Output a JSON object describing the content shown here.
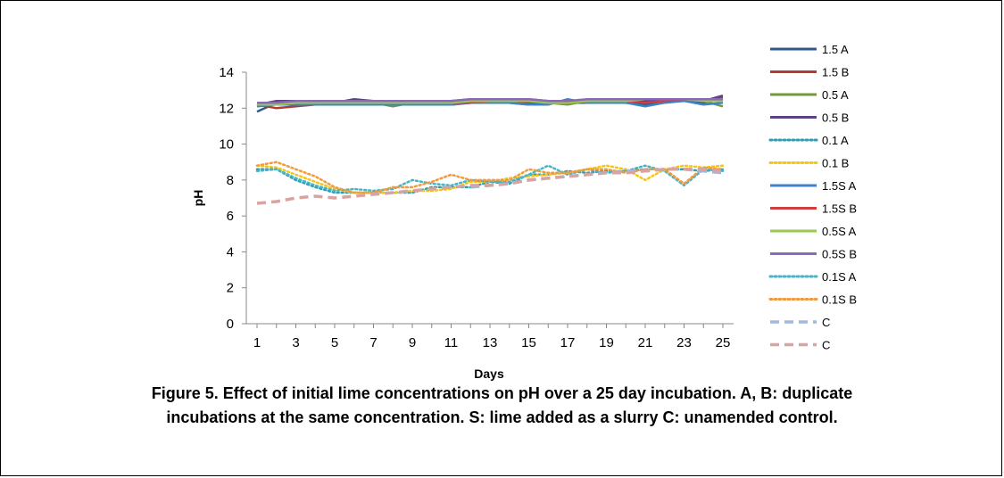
{
  "caption": {
    "line1": "Figure 5. Effect of initial lime concentrations on pH over a 25 day incubation. A, B: duplicate",
    "line2": "incubations at the same concentration. S: lime added as a slurry C: unamended control."
  },
  "chart_data": {
    "type": "line",
    "title": "",
    "xlabel": "Days",
    "ylabel": "pH",
    "ylim": [
      0,
      14
    ],
    "yticks": [
      0,
      2,
      4,
      6,
      8,
      10,
      12,
      14
    ],
    "xlim": [
      1,
      25
    ],
    "xticks": [
      1,
      3,
      5,
      7,
      9,
      11,
      13,
      15,
      17,
      19,
      21,
      23,
      25
    ],
    "grid": false,
    "legend_position": "right",
    "x": [
      1,
      2,
      3,
      4,
      5,
      6,
      7,
      8,
      9,
      10,
      11,
      12,
      13,
      14,
      15,
      16,
      17,
      18,
      19,
      20,
      21,
      22,
      23,
      24,
      25
    ],
    "series": [
      {
        "name": "1.5 A",
        "color": "#2f5b8c",
        "style": "solid",
        "values": [
          11.8,
          12.3,
          12.2,
          12.2,
          12.2,
          12.2,
          12.2,
          12.2,
          12.2,
          12.3,
          12.2,
          12.3,
          12.4,
          12.3,
          12.2,
          12.3,
          12.3,
          12.3,
          12.4,
          12.3,
          12.2,
          12.4,
          12.5,
          12.3,
          12.5
        ]
      },
      {
        "name": "1.5 B",
        "color": "#b23b35",
        "style": "solid",
        "values": [
          12.2,
          12.0,
          12.1,
          12.2,
          12.3,
          12.3,
          12.3,
          12.3,
          12.3,
          12.2,
          12.3,
          12.3,
          12.4,
          12.4,
          12.3,
          12.3,
          12.4,
          12.3,
          12.4,
          12.4,
          12.3,
          12.5,
          12.5,
          12.4,
          12.6
        ]
      },
      {
        "name": "0.5 A",
        "color": "#76973a",
        "style": "solid",
        "values": [
          12.1,
          12.3,
          12.3,
          12.4,
          12.3,
          12.3,
          12.3,
          12.1,
          12.3,
          12.4,
          12.3,
          12.4,
          12.4,
          12.4,
          12.4,
          12.3,
          12.2,
          12.4,
          12.4,
          12.3,
          12.4,
          12.5,
          12.5,
          12.4,
          12.1
        ]
      },
      {
        "name": "0.5 B",
        "color": "#5c4484",
        "style": "solid",
        "values": [
          12.2,
          12.4,
          12.4,
          12.4,
          12.3,
          12.5,
          12.4,
          12.4,
          12.4,
          12.4,
          12.4,
          12.5,
          12.5,
          12.5,
          12.5,
          12.4,
          12.4,
          12.4,
          12.5,
          12.5,
          12.4,
          12.5,
          12.5,
          12.4,
          12.7
        ]
      },
      {
        "name": "0.1 A",
        "color": "#2e9fb0",
        "style": "dotted",
        "values": [
          8.6,
          8.6,
          8.0,
          7.6,
          7.3,
          7.3,
          7.3,
          7.3,
          7.3,
          7.6,
          7.6,
          7.6,
          7.9,
          7.8,
          8.3,
          8.3,
          8.5,
          8.4,
          8.5,
          8.5,
          8.6,
          8.6,
          8.6,
          8.5,
          8.6
        ]
      },
      {
        "name": "0.1 B",
        "color": "#f5c518",
        "style": "dotted",
        "values": [
          8.8,
          8.7,
          8.3,
          7.9,
          7.5,
          7.3,
          7.3,
          7.3,
          7.4,
          7.4,
          7.5,
          7.9,
          7.9,
          8.1,
          8.2,
          8.3,
          8.4,
          8.6,
          8.8,
          8.6,
          8.0,
          8.6,
          8.8,
          8.7,
          8.8
        ]
      },
      {
        "name": "1.5S A",
        "color": "#3c83c9",
        "style": "solid",
        "values": [
          12.1,
          12.2,
          12.2,
          12.2,
          12.2,
          12.2,
          12.2,
          12.2,
          12.2,
          12.2,
          12.2,
          12.3,
          12.3,
          12.3,
          12.2,
          12.2,
          12.5,
          12.3,
          12.3,
          12.3,
          12.1,
          12.3,
          12.4,
          12.2,
          12.3
        ]
      },
      {
        "name": "1.5S B",
        "color": "#cf3f3f",
        "style": "solid",
        "values": [
          12.3,
          12.3,
          12.3,
          12.3,
          12.3,
          12.3,
          12.3,
          12.3,
          12.3,
          12.3,
          12.3,
          12.3,
          12.4,
          12.4,
          12.4,
          12.3,
          12.3,
          12.4,
          12.4,
          12.4,
          12.3,
          12.4,
          12.5,
          12.4,
          12.4
        ]
      },
      {
        "name": "0.5S A",
        "color": "#9ac94f",
        "style": "solid",
        "values": [
          12.2,
          12.2,
          12.3,
          12.3,
          12.3,
          12.3,
          12.3,
          12.3,
          12.3,
          12.3,
          12.3,
          12.4,
          12.4,
          12.4,
          12.4,
          12.3,
          12.3,
          12.4,
          12.4,
          12.4,
          12.5,
          12.5,
          12.5,
          12.4,
          12.4
        ]
      },
      {
        "name": "0.5S B",
        "color": "#8b68b8",
        "style": "solid",
        "values": [
          12.3,
          12.3,
          12.4,
          12.4,
          12.4,
          12.4,
          12.4,
          12.4,
          12.4,
          12.4,
          12.4,
          12.5,
          12.5,
          12.5,
          12.5,
          12.4,
          12.4,
          12.5,
          12.5,
          12.5,
          12.5,
          12.5,
          12.5,
          12.5,
          12.5
        ]
      },
      {
        "name": "0.1S A",
        "color": "#45b5c7",
        "style": "dotted",
        "values": [
          8.5,
          8.6,
          8.1,
          7.7,
          7.4,
          7.5,
          7.4,
          7.5,
          8.0,
          7.8,
          7.7,
          8.0,
          7.9,
          7.9,
          8.3,
          8.8,
          8.3,
          8.6,
          8.4,
          8.5,
          8.8,
          8.5,
          7.7,
          8.6,
          8.5
        ]
      },
      {
        "name": "0.1S B",
        "color": "#f39a3c",
        "style": "dotted",
        "values": [
          8.8,
          9.0,
          8.6,
          8.2,
          7.6,
          7.3,
          7.3,
          7.6,
          7.6,
          7.9,
          8.3,
          8.0,
          8.0,
          8.0,
          8.6,
          8.4,
          8.4,
          8.6,
          8.6,
          8.4,
          8.6,
          8.6,
          7.8,
          8.7,
          8.6
        ]
      },
      {
        "name": "C",
        "color": "#9fb8dc",
        "style": "dashed",
        "values": [
          null,
          null,
          null,
          null,
          null,
          null,
          null,
          null,
          null,
          null,
          null,
          7.6,
          7.7,
          7.8,
          8.0,
          8.1,
          8.2,
          8.3,
          8.4,
          8.5,
          8.5,
          8.6,
          8.6,
          8.5,
          8.4
        ]
      },
      {
        "name": "C",
        "color": "#d9a3a1",
        "style": "dashed",
        "values": [
          6.7,
          6.8,
          7.0,
          7.1,
          7.0,
          7.1,
          7.2,
          7.3,
          7.4,
          7.5,
          7.6,
          7.7,
          7.7,
          7.8,
          8.0,
          8.1,
          8.2,
          8.3,
          8.4,
          8.4,
          8.5,
          8.6,
          8.6,
          8.6,
          8.5
        ]
      }
    ]
  }
}
